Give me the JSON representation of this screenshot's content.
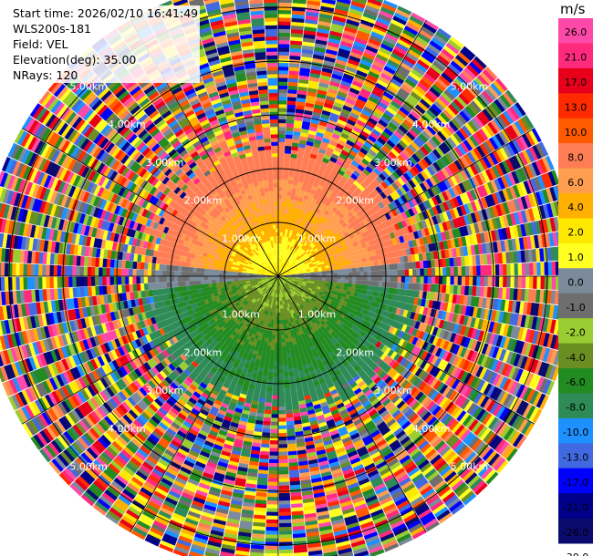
{
  "header": {
    "start_time": "Start time: 2026/02/10 16:41:49",
    "instrument": "WLS200s-181",
    "field": "Field: VEL",
    "elevation": "Elevation(deg): 35.00",
    "nrays": "NRays: 120"
  },
  "chart_data": {
    "type": "ppi",
    "field": "VEL",
    "units": "m/s",
    "range_rings_km": [
      1,
      2,
      3,
      4,
      5
    ],
    "range_ring_labels": [
      "1.00km",
      "2.00km",
      "3.00km",
      "4.00km",
      "5.00km"
    ],
    "max_range_km": 5.5,
    "nrays": 120,
    "elevation_deg": 35.0,
    "coherent_range_km": 2.45,
    "colorbar": {
      "ticks": [
        "26.0",
        "21.0",
        "17.0",
        "13.0",
        "10.0",
        "8.0",
        "6.0",
        "4.0",
        "2.0",
        "1.0",
        "0.0",
        "-1.0",
        "-2.0",
        "-4.0",
        "-6.0",
        "-8.0",
        "-10.0",
        "-13.0",
        "-17.0",
        "-21.0",
        "-26.0",
        "-30.0"
      ],
      "colors": [
        "#ff49a8",
        "#ff2a7e",
        "#e8001a",
        "#ff2a00",
        "#ff5a00",
        "#ff7d55",
        "#ff9e4f",
        "#ffb000",
        "#ffe800",
        "#ffff22",
        "#7b8b9b",
        "#6e6e6e",
        "#9acd32",
        "#6b8e23",
        "#228b22",
        "#2e8b57",
        "#1e90ff",
        "#4169e1",
        "#0000ff",
        "#00008b",
        "#0b0b6e"
      ]
    },
    "velocity_pattern": {
      "towards_north_half": "positive 1 to 6 m/s",
      "towards_south_half": "negative -1 to -6 m/s",
      "far_range": "noise"
    }
  }
}
